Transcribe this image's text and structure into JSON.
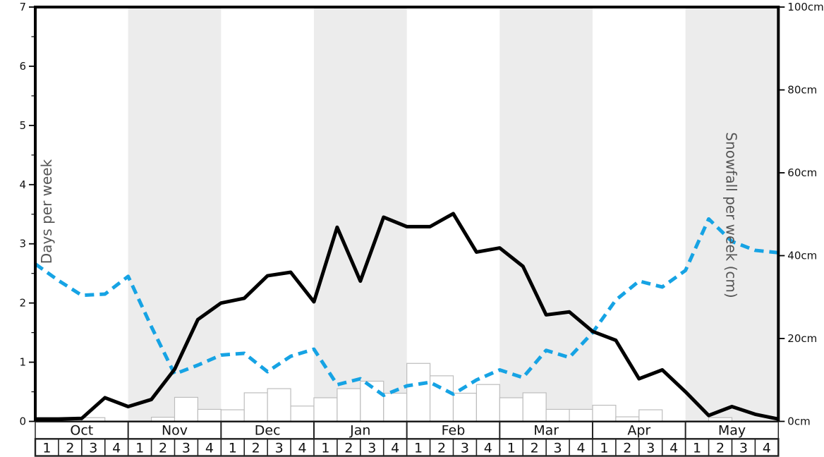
{
  "axes": {
    "left": {
      "title": "Days per week",
      "tick_labels": [
        "0",
        "1",
        "2",
        "3",
        "4",
        "5",
        "6",
        "7"
      ],
      "tick_values": [
        0,
        1,
        2,
        3,
        4,
        5,
        6,
        7
      ],
      "minor_step": 0.5,
      "range": [
        0,
        7
      ]
    },
    "right": {
      "title": "Snowfall per week (cm)",
      "tick_labels": [
        "0cm",
        "20cm",
        "40cm",
        "60cm",
        "80cm",
        "100cm"
      ],
      "tick_values": [
        0,
        20,
        40,
        60,
        80,
        100
      ],
      "range": [
        0,
        100
      ]
    }
  },
  "x_axis": {
    "months": [
      {
        "label": "Oct",
        "shaded": false
      },
      {
        "label": "Nov",
        "shaded": true
      },
      {
        "label": "Dec",
        "shaded": false
      },
      {
        "label": "Jan",
        "shaded": true
      },
      {
        "label": "Feb",
        "shaded": false
      },
      {
        "label": "Mar",
        "shaded": true
      },
      {
        "label": "Apr",
        "shaded": false
      },
      {
        "label": "May",
        "shaded": true
      }
    ],
    "week_labels": [
      "1",
      "2",
      "3",
      "4"
    ]
  },
  "colors": {
    "black_line": "#000000",
    "blue_dashed_line": "#16a3e4",
    "shaded_band": "#ececec",
    "bar_fill": "#ffffff",
    "bar_stroke": "#bdbdbd",
    "axis_title_text": "#555555",
    "tick_text": "#111111",
    "row_border": "#222222"
  },
  "chart_data": {
    "type": "line",
    "title": "",
    "xlabel": "",
    "x_mode": "33 points at week boundaries, 4 weeks per month Oct-May (x index 0..32)",
    "months": [
      "Oct",
      "Nov",
      "Dec",
      "Jan",
      "Feb",
      "Mar",
      "Apr",
      "May"
    ],
    "weeks_per_month": 4,
    "left_ylabel": "Days per week",
    "left_ylim": [
      0,
      7
    ],
    "right_ylabel": "Snowfall per week (cm)",
    "right_ylim": [
      0,
      100
    ],
    "grid": false,
    "legend": "none",
    "series": [
      {
        "name": "black-solid-line",
        "style": "solid",
        "axis": "left",
        "unit": "days per week",
        "values": [
          0.04,
          0.04,
          0.05,
          0.4,
          0.25,
          0.37,
          0.88,
          1.72,
          2.0,
          2.08,
          2.46,
          2.52,
          2.02,
          3.28,
          2.37,
          3.45,
          3.29,
          3.29,
          3.51,
          2.86,
          2.93,
          2.62,
          1.8,
          1.85,
          1.52,
          1.37,
          0.72,
          0.87,
          0.5,
          0.1,
          0.25,
          0.12,
          0.04
        ]
      },
      {
        "name": "blue-dashed-line",
        "style": "dashed",
        "axis": "left",
        "unit": "days per week",
        "values": [
          2.66,
          2.38,
          2.13,
          2.15,
          2.45,
          1.6,
          0.8,
          0.95,
          1.12,
          1.15,
          0.84,
          1.1,
          1.22,
          0.62,
          0.72,
          0.44,
          0.6,
          0.66,
          0.46,
          0.7,
          0.87,
          0.74,
          1.2,
          1.08,
          1.5,
          2.05,
          2.37,
          2.27,
          2.55,
          3.42,
          3.04,
          2.89,
          2.85
        ]
      },
      {
        "name": "white-bars",
        "style": "bar",
        "axis": "right",
        "unit": "cm per week",
        "values": [
          0,
          0,
          0.9,
          0,
          0,
          1.0,
          5.8,
          2.9,
          2.8,
          6.9,
          7.9,
          3.7,
          5.7,
          7.9,
          9.7,
          6.8,
          14.0,
          11.0,
          6.8,
          8.9,
          5.7,
          6.9,
          2.9,
          2.9,
          3.9,
          1.1,
          2.8,
          0,
          0,
          0.9,
          0,
          0
        ]
      }
    ]
  }
}
